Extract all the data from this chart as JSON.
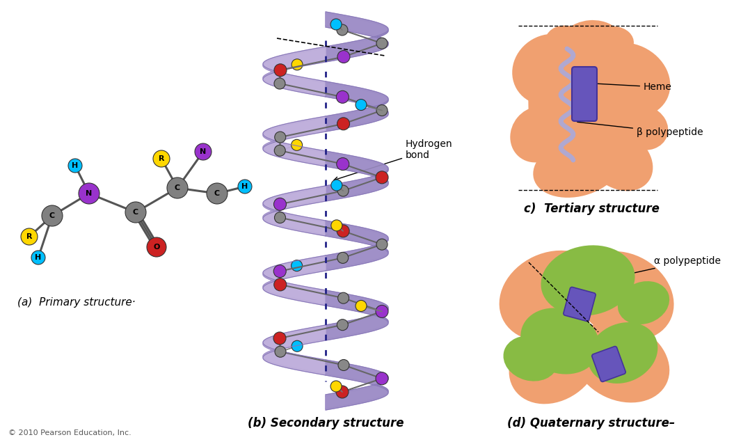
{
  "bg_color": "#ffffff",
  "copyright": "© 2010 Pearson Education, Inc.",
  "panel_a_label": "(a)  Primary structure·",
  "panel_b_label": "(b) Secondary structure",
  "panel_c_label": "c)  Tertiary structure",
  "panel_d_label": "(d) Quaternary structure–",
  "hydrogen_bond_label": "Hydrogen\nbond",
  "heme_label": "Heme",
  "beta_poly_label": "β polypeptide",
  "alpha_poly_label": "α polypeptide",
  "atom_C": "#808080",
  "atom_N": "#9932CC",
  "atom_H": "#00BFFF",
  "atom_O": "#CC2222",
  "atom_R": "#FFD700",
  "atom_purple": "#9932CC",
  "atom_red": "#CC2222",
  "atom_yellow": "#FFD700",
  "atom_cyan": "#00BFFF",
  "atom_gray": "#888888",
  "helix_dark": "#8878B8",
  "helix_mid": "#A090C8",
  "helix_light": "#C0B0DC",
  "tertiary_orange": "#F0A070",
  "quaternary_orange": "#F0A070",
  "quaternary_green": "#88BB44",
  "heme_purple": "#6655BB",
  "helix_beta_purple": "#7766BB",
  "dotted_navy": "#222288",
  "label_bold_color": "#111111"
}
